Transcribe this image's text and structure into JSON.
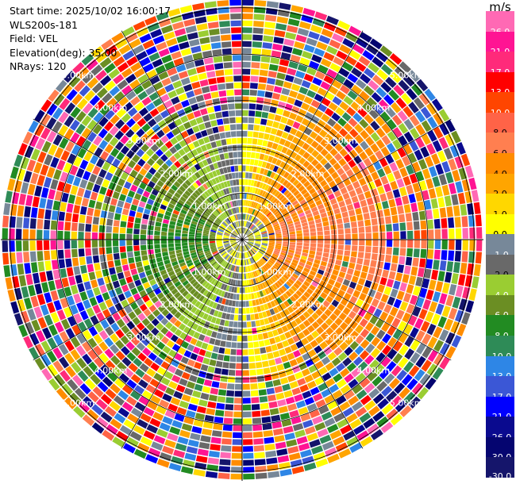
{
  "header": {
    "start_time": "Start time: 2025/10/02 16:00:17",
    "instrument": "WLS200s-181",
    "field": "Field: VEL",
    "elevation": "Elevation(deg): 35.00",
    "nrays": "NRays: 120"
  },
  "chart_data": {
    "type": "heatmap",
    "projection": "polar-ppi",
    "field": "VEL",
    "unit": "m/s",
    "elevation_deg": 35.0,
    "nrays": 120,
    "range_rings_km": [
      1,
      2,
      3,
      4,
      5
    ],
    "ring_labels": [
      "1.00km",
      "2.00km",
      "3.00km",
      "4.00km",
      "5.00km"
    ],
    "max_range_km": 5.2,
    "colorbar": {
      "unit": "m/s",
      "levels": [
        "-30.0",
        "-26.0",
        "-21.0",
        "-17.0",
        "-13.0",
        "-10.0",
        "-8.0",
        "-6.0",
        "-4.0",
        "-2.0",
        "-1.0",
        "0.0",
        "1.0",
        "2.0",
        "4.0",
        "6.0",
        "8.0",
        "10.0",
        "13.0",
        "17.0",
        "21.0",
        "26.0"
      ],
      "colors": [
        "#15156b",
        "#050570",
        "#0a0a8f",
        "#0000ff",
        "#3b57d6",
        "#2e86e6",
        "#2e8b57",
        "#228b22",
        "#6b8e23",
        "#9acd32",
        "#696969",
        "#778899",
        "#ffff00",
        "#ffd700",
        "#ffa500",
        "#ff8c00",
        "#ff7f50",
        "#ff6347",
        "#ff4500",
        "#ff0000",
        "#ff2a7a",
        "#ff1493",
        "#ff69b4"
      ]
    },
    "velocity_pattern": {
      "receding_azimuth_deg": 90,
      "approaching_azimuth_deg": 270,
      "peak_velocity_ms": 6.5
    }
  }
}
